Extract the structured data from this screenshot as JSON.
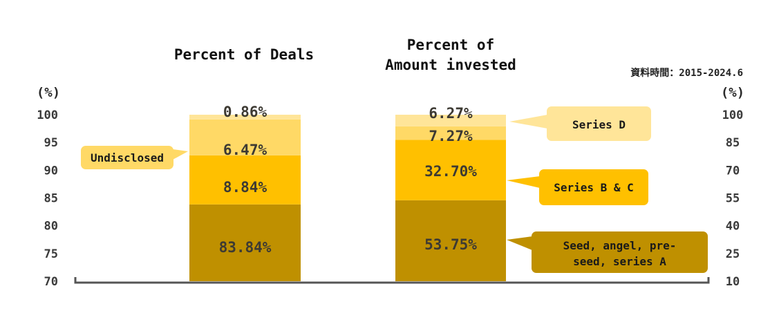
{
  "chart_data": {
    "type": "bar",
    "stacked": true,
    "note": "資料時間：2015-2024.6",
    "unit_label": "(%)",
    "panels": [
      {
        "title_lines": [
          "Percent of Deals"
        ],
        "yaxis_side": "left",
        "ylim": [
          70,
          100
        ],
        "yticks": [
          100,
          95,
          90,
          85,
          80,
          75,
          70
        ],
        "segments": [
          {
            "category": "Seed, angel, pre-seed, series A",
            "value": 83.84,
            "label": "83.84%",
            "color": "#bf9000"
          },
          {
            "category": "Series B & C",
            "value": 8.84,
            "label": "8.84%",
            "color": "#ffc000"
          },
          {
            "category": "Undisclosed",
            "value": 6.47,
            "label": "6.47%",
            "color": "#ffd966"
          },
          {
            "category": "Series D",
            "value": 0.86,
            "label": "0.86%",
            "color": "#ffe599"
          }
        ]
      },
      {
        "title_lines": [
          "Percent of",
          "Amount invested"
        ],
        "yaxis_side": "right",
        "ylim": [
          10,
          100
        ],
        "yticks": [
          100,
          85,
          70,
          55,
          40,
          25,
          10
        ],
        "segments": [
          {
            "category": "Seed, angel, pre-seed, series A",
            "value": 53.75,
            "label": "53.75%",
            "color": "#bf9000"
          },
          {
            "category": "Series B & C",
            "value": 32.7,
            "label": "32.70%",
            "color": "#ffc000"
          },
          {
            "category": "Undisclosed",
            "value": 7.27,
            "label": "7.27%",
            "color": "#ffd966"
          },
          {
            "category": "Series D",
            "value": 6.27,
            "label": "6.27%",
            "color": "#ffe599"
          }
        ]
      }
    ],
    "callouts": [
      {
        "name": "callout-undisclosed",
        "lines": [
          "Undisclosed"
        ],
        "color": "#ffd966"
      },
      {
        "name": "callout-series-d",
        "lines": [
          "Series D"
        ],
        "color": "#ffe599"
      },
      {
        "name": "callout-series-b-c",
        "lines": [
          "Series B & C"
        ],
        "color": "#ffc000"
      },
      {
        "name": "callout-seed",
        "lines": [
          "Seed, angel, pre-",
          "seed, series A"
        ],
        "color": "#bf9000"
      }
    ]
  }
}
